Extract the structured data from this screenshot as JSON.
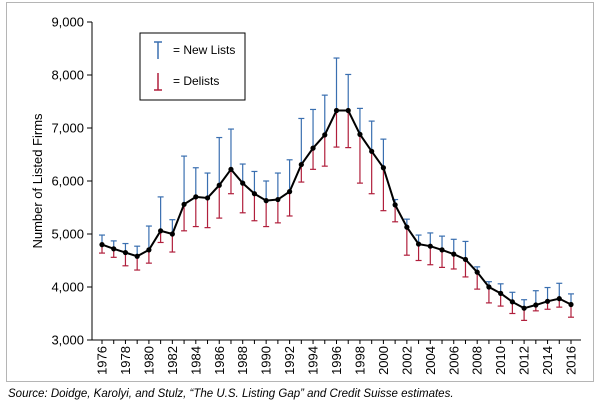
{
  "source_note": "Source: Doidge, Karolyi, and Stulz, “The U.S. Listing Gap” and Credit Suisse estimates.",
  "chart_data": {
    "type": "line",
    "ylabel": "Number of Listed Firms",
    "xlabel": "",
    "ylim": [
      3000,
      9000
    ],
    "xlim": [
      1976,
      2016
    ],
    "y_ticks": [
      "3,000",
      "4,000",
      "5,000",
      "6,000",
      "7,000",
      "8,000",
      "9,000"
    ],
    "y_tick_values": [
      3000,
      4000,
      5000,
      6000,
      7000,
      8000,
      9000
    ],
    "x_ticks": [
      "1976",
      "1978",
      "1980",
      "1982",
      "1984",
      "1986",
      "1988",
      "1990",
      "1992",
      "1994",
      "1996",
      "1998",
      "2000",
      "2002",
      "2004",
      "2006",
      "2008",
      "2010",
      "2012",
      "2014",
      "2016"
    ],
    "grid": false,
    "legend_position": "top-left",
    "legend": [
      {
        "name": "= New Lists",
        "color": "#3a6fb0",
        "marker": "up-bar"
      },
      {
        "name": "= Delists",
        "color": "#b01f3c",
        "marker": "down-bar"
      }
    ],
    "line_color": "#000000",
    "x": [
      1976,
      1977,
      1978,
      1979,
      1980,
      1981,
      1982,
      1983,
      1984,
      1985,
      1986,
      1987,
      1988,
      1989,
      1990,
      1991,
      1992,
      1993,
      1994,
      1995,
      1996,
      1997,
      1998,
      1999,
      2000,
      2001,
      2002,
      2003,
      2004,
      2005,
      2006,
      2007,
      2008,
      2009,
      2010,
      2011,
      2012,
      2013,
      2014,
      2015,
      2016
    ],
    "series": [
      {
        "name": "Number of Listed Firms",
        "values": [
          4800,
          4720,
          4650,
          4580,
          4700,
          5060,
          5000,
          5560,
          5700,
          5680,
          5920,
          6220,
          5960,
          5760,
          5630,
          5650,
          5800,
          6310,
          6620,
          6870,
          7330,
          7330,
          6880,
          6560,
          6250,
          5550,
          5130,
          4810,
          4770,
          4700,
          4620,
          4520,
          4280,
          4000,
          3880,
          3720,
          3600,
          3660,
          3730,
          3780,
          3670
        ]
      },
      {
        "name": "New Lists",
        "values": [
          4980,
          4870,
          4820,
          4770,
          5150,
          5700,
          5270,
          6470,
          6250,
          6150,
          6820,
          6980,
          6320,
          6180,
          6000,
          6150,
          6400,
          7180,
          7350,
          7620,
          8320,
          8010,
          7370,
          7130,
          6790,
          5650,
          5280,
          4980,
          5020,
          4960,
          4900,
          4860,
          4380,
          4100,
          4060,
          3900,
          3760,
          3930,
          3990,
          4070,
          3870
        ]
      },
      {
        "name": "Delists",
        "values": [
          4640,
          4560,
          4400,
          4320,
          4450,
          4840,
          4660,
          5060,
          5140,
          5120,
          5300,
          5760,
          5400,
          5250,
          5140,
          5210,
          5340,
          5980,
          6220,
          6280,
          6640,
          6630,
          5960,
          5760,
          5440,
          5230,
          4600,
          4500,
          4420,
          4370,
          4340,
          4190,
          3960,
          3700,
          3640,
          3500,
          3370,
          3550,
          3580,
          3620,
          3430
        ]
      }
    ]
  }
}
